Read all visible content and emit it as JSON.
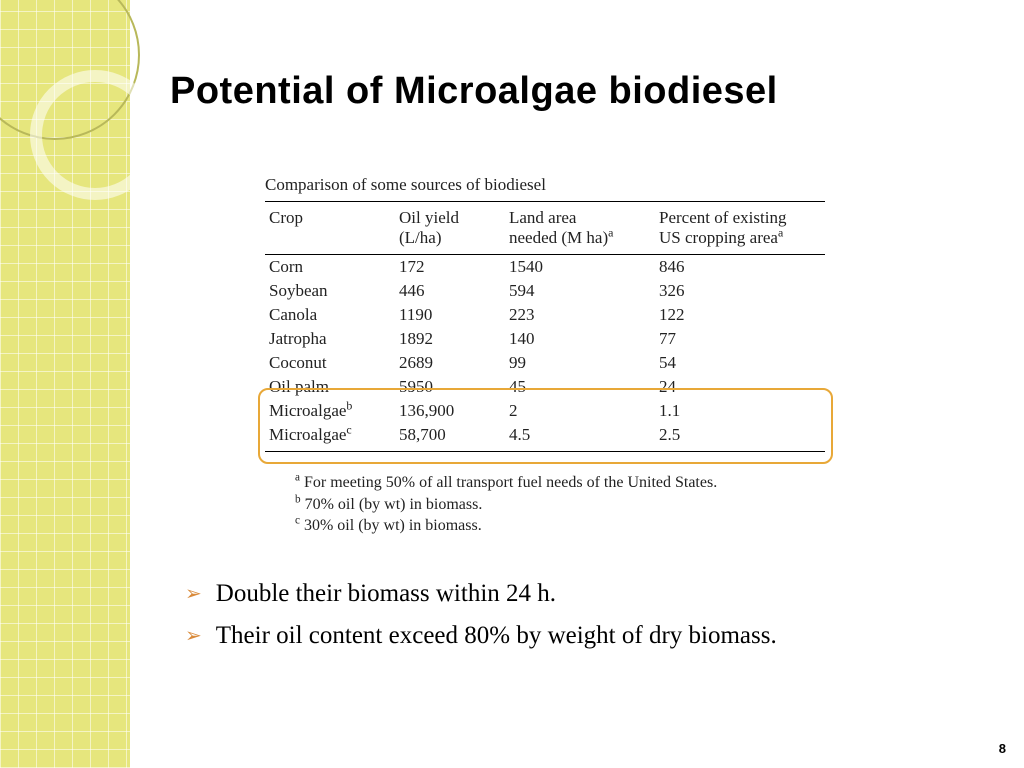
{
  "theme": {
    "sidebar_bg": "#e6e67d",
    "sidebar_grid": "#ffffff",
    "ring_outer": "#b8b85a",
    "ring_inner": "rgba(255,255,255,.55)",
    "title_font": "Gill Sans",
    "body_font": "Times New Roman",
    "bullet_marker_color": "#d98a3a",
    "highlight_border": "#e8a838",
    "text_color": "#000000"
  },
  "title": "Potential of Microalgae biodiesel",
  "table": {
    "caption": "Comparison of some sources of biodiesel",
    "columns": [
      {
        "label_line1": "Crop",
        "label_line2": ""
      },
      {
        "label_line1": "Oil yield",
        "label_line2": "(L/ha)"
      },
      {
        "label_line1": "Land area",
        "label_line2": "needed (M ha)",
        "sup": "a"
      },
      {
        "label_line1": "Percent of existing",
        "label_line2": "US cropping area",
        "sup": "a"
      }
    ],
    "rows": [
      {
        "crop": "Corn",
        "oil": "172",
        "land": "1540",
        "pct": "846"
      },
      {
        "crop": "Soybean",
        "oil": "446",
        "land": "594",
        "pct": "326"
      },
      {
        "crop": "Canola",
        "oil": "1190",
        "land": "223",
        "pct": "122"
      },
      {
        "crop": "Jatropha",
        "oil": "1892",
        "land": "140",
        "pct": "77"
      },
      {
        "crop": "Coconut",
        "oil": "2689",
        "land": "99",
        "pct": "54"
      },
      {
        "crop": "Oil palm",
        "oil": "5950",
        "land": "45",
        "pct": "24"
      },
      {
        "crop": "Microalgae",
        "crop_sup": "b",
        "oil": "136,900",
        "land": "2",
        "pct": "1.1"
      },
      {
        "crop": "Microalgae",
        "crop_sup": "c",
        "oil": "58,700",
        "land": "4.5",
        "pct": "2.5"
      }
    ],
    "highlight": {
      "from_row": 5,
      "to_row": 7
    }
  },
  "footnotes": {
    "a": "For meeting 50% of all transport fuel needs of the United States.",
    "b": "70% oil (by wt) in biomass.",
    "c": "30% oil (by wt) in biomass."
  },
  "bullets": [
    "Double their biomass within 24 h.",
    "Their oil content exceed 80% by weight of dry biomass."
  ],
  "page_number": "8"
}
